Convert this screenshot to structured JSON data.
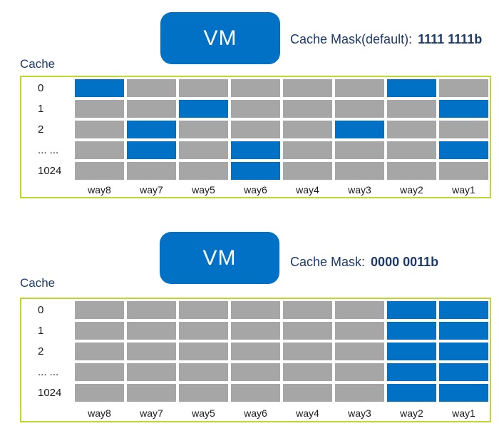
{
  "colors": {
    "blue": "#0071C5",
    "gray": "#A6A6A6",
    "border": "#BFD730",
    "navy": "#1B3A6B"
  },
  "sections": [
    {
      "vm_label": "VM",
      "mask_label": "Cache Mask(default):",
      "mask_value": "1111 1111b",
      "cache_label": "Cache",
      "table": {
        "row_labels": [
          "0",
          "1",
          "2",
          "... ...",
          "1024"
        ],
        "col_labels": [
          "way8",
          "way7",
          "way5",
          "way6",
          "way4",
          "way3",
          "way2",
          "way1"
        ],
        "cells": [
          [
            1,
            0,
            0,
            0,
            0,
            0,
            1,
            0
          ],
          [
            0,
            0,
            1,
            0,
            0,
            0,
            0,
            1
          ],
          [
            0,
            1,
            0,
            0,
            0,
            1,
            0,
            0
          ],
          [
            0,
            1,
            0,
            1,
            0,
            0,
            0,
            1
          ],
          [
            0,
            0,
            0,
            1,
            0,
            0,
            0,
            0
          ]
        ]
      }
    },
    {
      "vm_label": "VM",
      "mask_label": "Cache Mask:",
      "mask_value": "0000 0011b",
      "cache_label": "Cache",
      "table": {
        "row_labels": [
          "0",
          "1",
          "2",
          "... ...",
          "1024"
        ],
        "col_labels": [
          "way8",
          "way7",
          "way5",
          "way6",
          "way4",
          "way3",
          "way2",
          "way1"
        ],
        "cells": [
          [
            0,
            0,
            0,
            0,
            0,
            0,
            1,
            1
          ],
          [
            0,
            0,
            0,
            0,
            0,
            0,
            1,
            1
          ],
          [
            0,
            0,
            0,
            0,
            0,
            0,
            1,
            1
          ],
          [
            0,
            0,
            0,
            0,
            0,
            0,
            1,
            1
          ],
          [
            0,
            0,
            0,
            0,
            0,
            0,
            1,
            1
          ]
        ]
      }
    }
  ]
}
